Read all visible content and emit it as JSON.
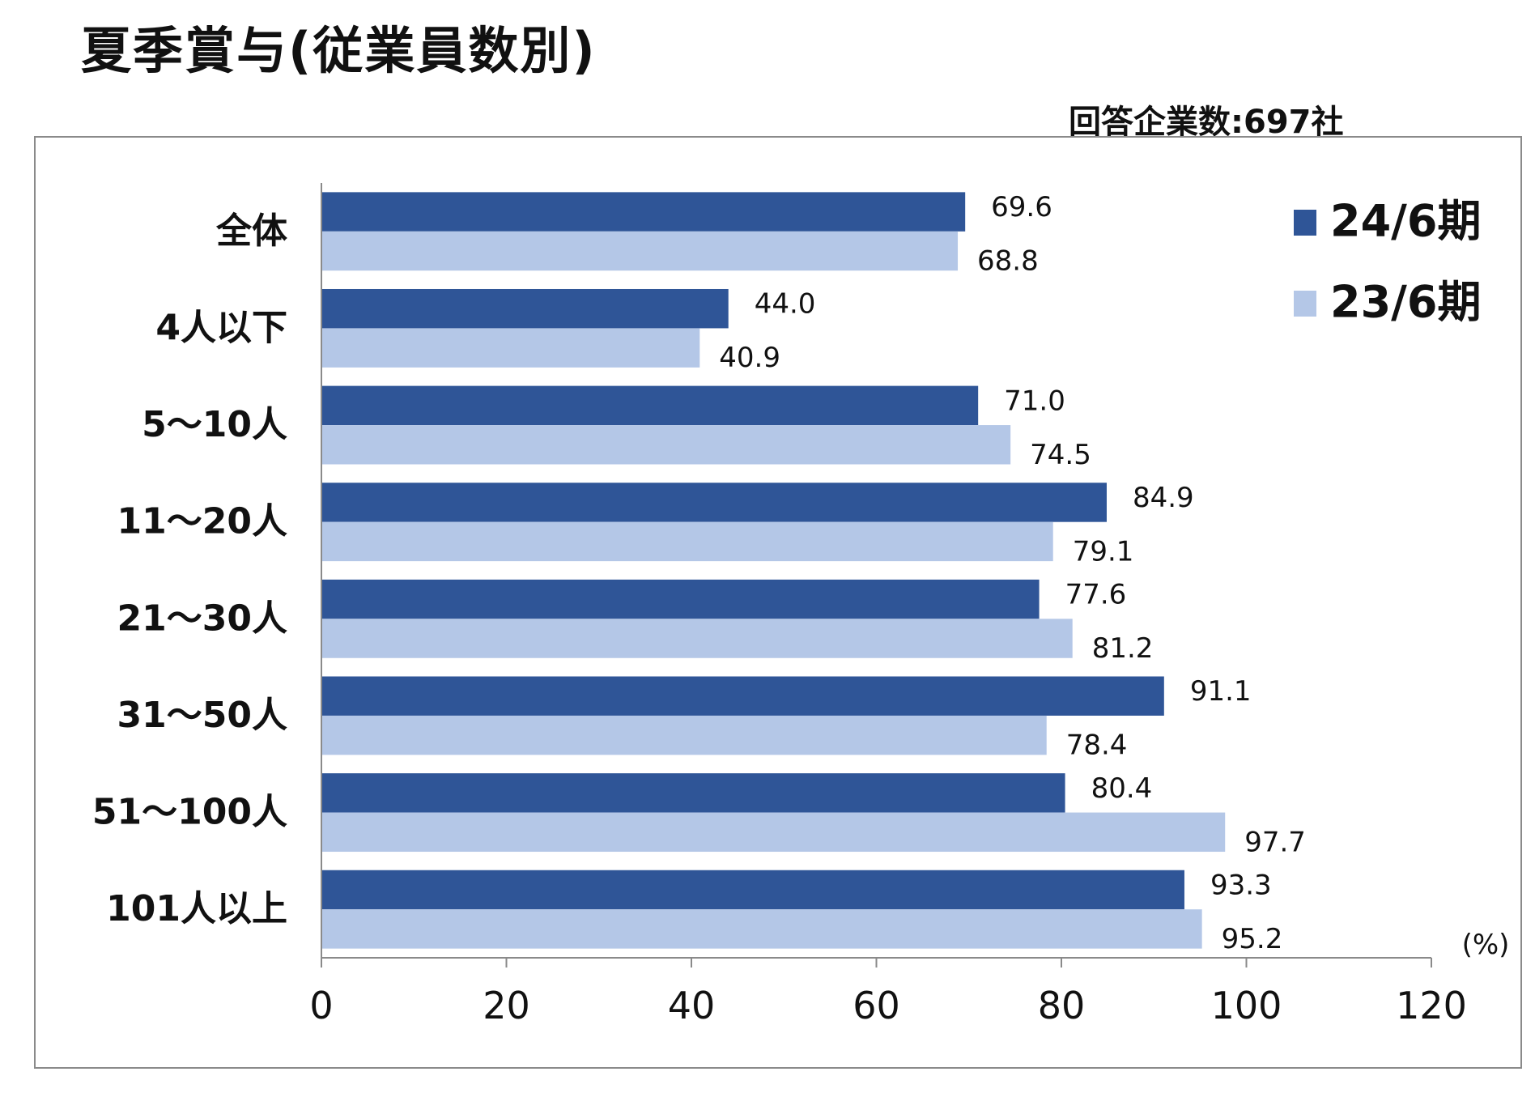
{
  "title": "夏季賞与(従業員数別)",
  "subtitle": "回答企業数:697社",
  "chart_data": {
    "type": "bar",
    "orientation": "horizontal",
    "title": "夏季賞与(従業員数別)",
    "categories": [
      "全体",
      "4人以下",
      "5～10人",
      "11～20人",
      "21～30人",
      "31～50人",
      "51～100人",
      "101人以上"
    ],
    "series": [
      {
        "name": "24/6期",
        "color": "#2f5597",
        "values": [
          69.6,
          44.0,
          71.0,
          84.9,
          77.6,
          91.1,
          80.4,
          93.3
        ],
        "labels": [
          "69.6",
          "44.0",
          "71.0",
          "84.9",
          "77.6",
          "91.1",
          "80.4",
          "93.3"
        ]
      },
      {
        "name": "23/6期",
        "color": "#b4c7e7",
        "values": [
          68.8,
          40.9,
          74.5,
          79.1,
          81.2,
          78.4,
          97.7,
          95.2
        ],
        "labels": [
          "68.8",
          "40.9",
          "74.5",
          "79.1",
          "81.2",
          "78.4",
          "97.7",
          "95.2"
        ]
      }
    ],
    "xlim": [
      0,
      120
    ],
    "xticks": [
      "0",
      "20",
      "40",
      "60",
      "80",
      "100",
      "120"
    ],
    "unit": "(%)",
    "legend": "top-right",
    "grid": false
  }
}
